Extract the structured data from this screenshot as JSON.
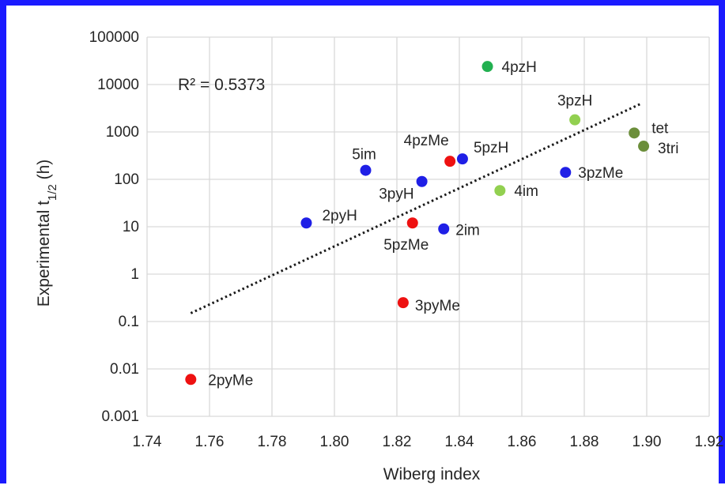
{
  "chart_data": {
    "type": "scatter",
    "title": "",
    "xlabel": "Wiberg index",
    "ylabel": "Experimental t",
    "ylabel_subscript": "1/2",
    "ylabel_suffix": " (h)",
    "xlim": [
      1.74,
      1.92
    ],
    "ylim": [
      0.001,
      100000
    ],
    "yscale": "log",
    "grid": true,
    "x_ticks": [
      "1.74",
      "1.76",
      "1.78",
      "1.80",
      "1.82",
      "1.84",
      "1.86",
      "1.88",
      "1.90",
      "1.92"
    ],
    "y_ticks": [
      "100000",
      "10000",
      "1000",
      "100",
      "10",
      "1",
      "0.1",
      "0.01",
      "0.001"
    ],
    "annotation": "R² = 0.5373",
    "colors": {
      "blue": "#1f1fe6",
      "red": "#ee1111",
      "green": "#22b050",
      "lightgreen": "#92d050",
      "olive": "#6b8e3a"
    },
    "points": [
      {
        "label": "2pyMe",
        "x": 1.754,
        "y": 0.006,
        "color": "red"
      },
      {
        "label": "2pyH",
        "x": 1.791,
        "y": 12,
        "color": "blue"
      },
      {
        "label": "5im",
        "x": 1.81,
        "y": 155,
        "color": "blue"
      },
      {
        "label": "3pyMe",
        "x": 1.822,
        "y": 0.25,
        "color": "red"
      },
      {
        "label": "5pzMe",
        "x": 1.825,
        "y": 12,
        "color": "red"
      },
      {
        "label": "3pyH",
        "x": 1.828,
        "y": 90,
        "color": "blue"
      },
      {
        "label": "2im",
        "x": 1.835,
        "y": 9,
        "color": "blue"
      },
      {
        "label": "4pzMe",
        "x": 1.837,
        "y": 240,
        "color": "red"
      },
      {
        "label": "5pzH",
        "x": 1.841,
        "y": 270,
        "color": "blue"
      },
      {
        "label": "4pzH",
        "x": 1.849,
        "y": 24000,
        "color": "green"
      },
      {
        "label": "4im",
        "x": 1.853,
        "y": 58,
        "color": "lightgreen"
      },
      {
        "label": "3pzMe",
        "x": 1.874,
        "y": 140,
        "color": "blue"
      },
      {
        "label": "3pzH",
        "x": 1.877,
        "y": 1800,
        "color": "lightgreen"
      },
      {
        "label": "tet",
        "x": 1.896,
        "y": 950,
        "color": "olive"
      },
      {
        "label": "3tri",
        "x": 1.899,
        "y": 500,
        "color": "olive"
      }
    ],
    "trendline": {
      "x": [
        1.754,
        1.898
      ],
      "y": [
        0.15,
        3900
      ]
    }
  }
}
